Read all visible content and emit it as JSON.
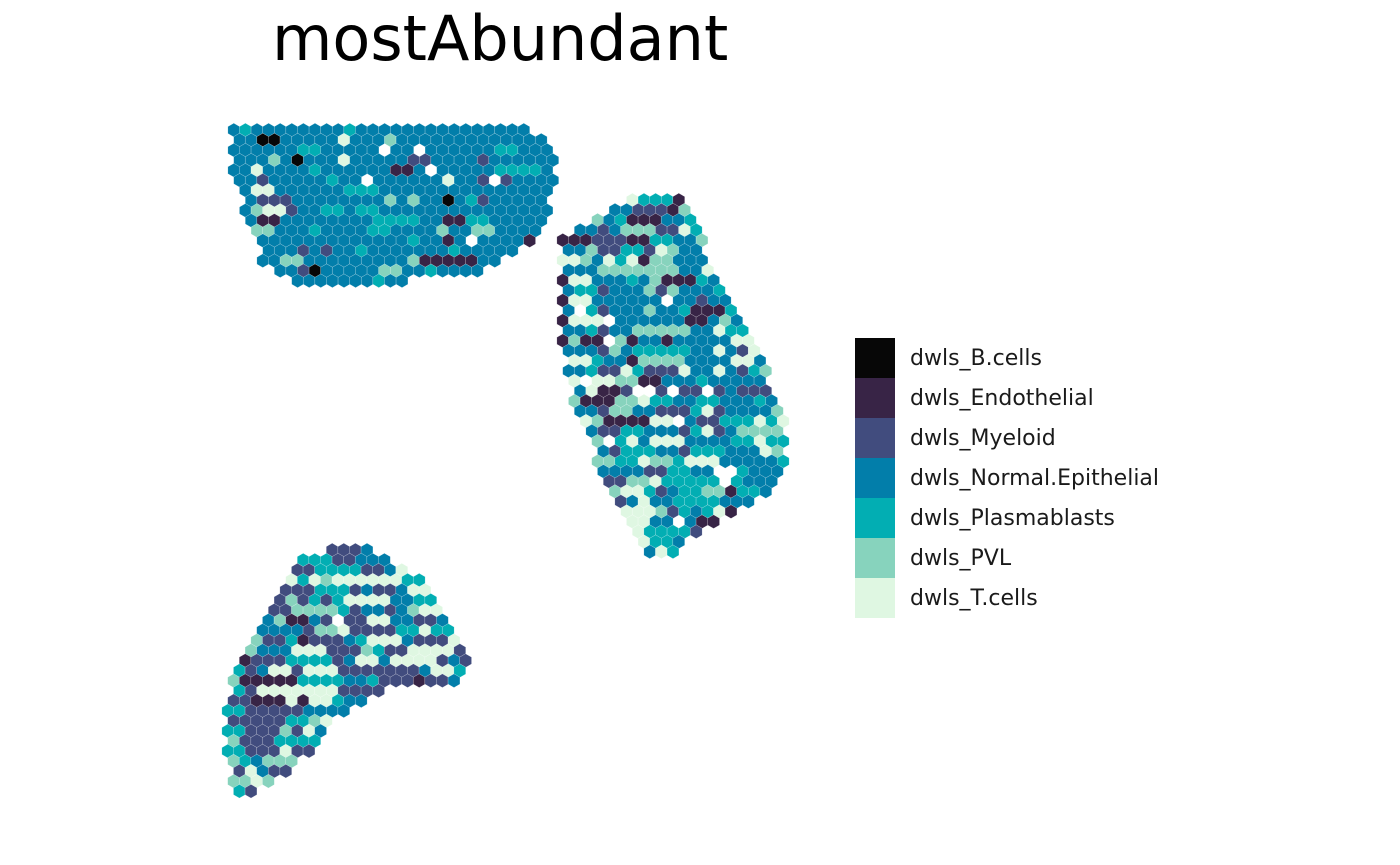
{
  "chart_data": {
    "type": "scatter",
    "title": "mostAbundant",
    "legend_position": "right",
    "marker": "hexagon",
    "axes_visible": false,
    "grid": false,
    "categories": [
      {
        "label": "dwls_B.cells",
        "color": "#070707"
      },
      {
        "label": "dwls_Endothelial",
        "color": "#382446"
      },
      {
        "label": "dwls_Myeloid",
        "color": "#414C7E"
      },
      {
        "label": "dwls_Normal.Epithelial",
        "color": "#027EAA"
      },
      {
        "label": "dwls_Plasmablasts",
        "color": "#02AEB3"
      },
      {
        "label": "dwls_PVL",
        "color": "#87D3BD"
      },
      {
        "label": "dwls_T.cells",
        "color": "#DFF7E2"
      }
    ],
    "clusters": [
      {
        "region": "top-left",
        "composition": {
          "dwls_Normal.Epithelial": 0.8,
          "dwls_Plasmablasts": 0.07,
          "dwls_PVL": 0.04,
          "dwls_T.cells": 0.03,
          "dwls_Myeloid": 0.02,
          "dwls_Endothelial": 0.02,
          "dwls_B.cells": 0.02
        }
      },
      {
        "region": "right",
        "composition": {
          "dwls_Normal.Epithelial": 0.26,
          "dwls_Plasmablasts": 0.24,
          "dwls_PVL": 0.15,
          "dwls_T.cells": 0.16,
          "dwls_Myeloid": 0.1,
          "dwls_Endothelial": 0.07,
          "dwls_B.cells": 0.02
        }
      },
      {
        "region": "bottom-left",
        "composition": {
          "dwls_Myeloid": 0.3,
          "dwls_Plasmablasts": 0.22,
          "dwls_T.cells": 0.22,
          "dwls_Normal.Epithelial": 0.16,
          "dwls_PVL": 0.06,
          "dwls_Endothelial": 0.04
        }
      }
    ]
  }
}
